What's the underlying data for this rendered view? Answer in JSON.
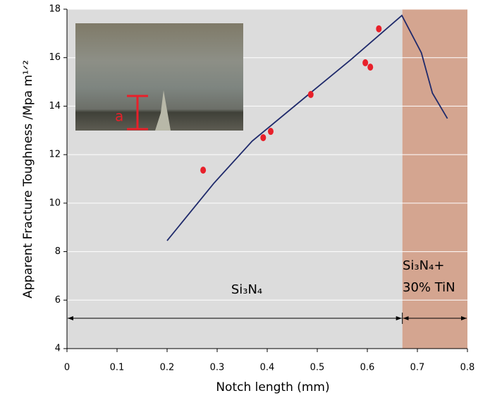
{
  "chart_data": {
    "type": "scatter",
    "x_label": "Notch length (mm)",
    "y_label": "Apparent Fracture Toughness /Mpa m¹ᐟ²",
    "xlim": [
      0,
      0.8
    ],
    "xticks": [
      0,
      0.1,
      0.2,
      0.3,
      0.4,
      0.5,
      0.6,
      0.7,
      0.8
    ],
    "ylim": [
      4,
      18
    ],
    "yticks": [
      4,
      6,
      8,
      10,
      12,
      14,
      16,
      18
    ],
    "grid": true,
    "region_boundary": 0.67,
    "region_colors": [
      "#dcdcdc",
      "#d4a590"
    ],
    "region_labels": [
      "Si₃N₄",
      "Si₃N₄+",
      "30% TiN"
    ],
    "inset_label": "a",
    "line": {
      "color": "#1f2a6b",
      "x": [
        0.2,
        0.293,
        0.37,
        0.486,
        0.566,
        0.669,
        0.708,
        0.73,
        0.76
      ],
      "y": [
        8.45,
        10.81,
        12.56,
        14.54,
        15.9,
        17.74,
        16.2,
        14.54,
        13.49
      ]
    },
    "points": {
      "color": "#e8202a",
      "x": [
        0.272,
        0.392,
        0.407,
        0.487,
        0.596,
        0.606,
        0.623
      ],
      "y": [
        11.36,
        12.7,
        12.96,
        14.48,
        15.79,
        15.61,
        17.19
      ]
    }
  }
}
